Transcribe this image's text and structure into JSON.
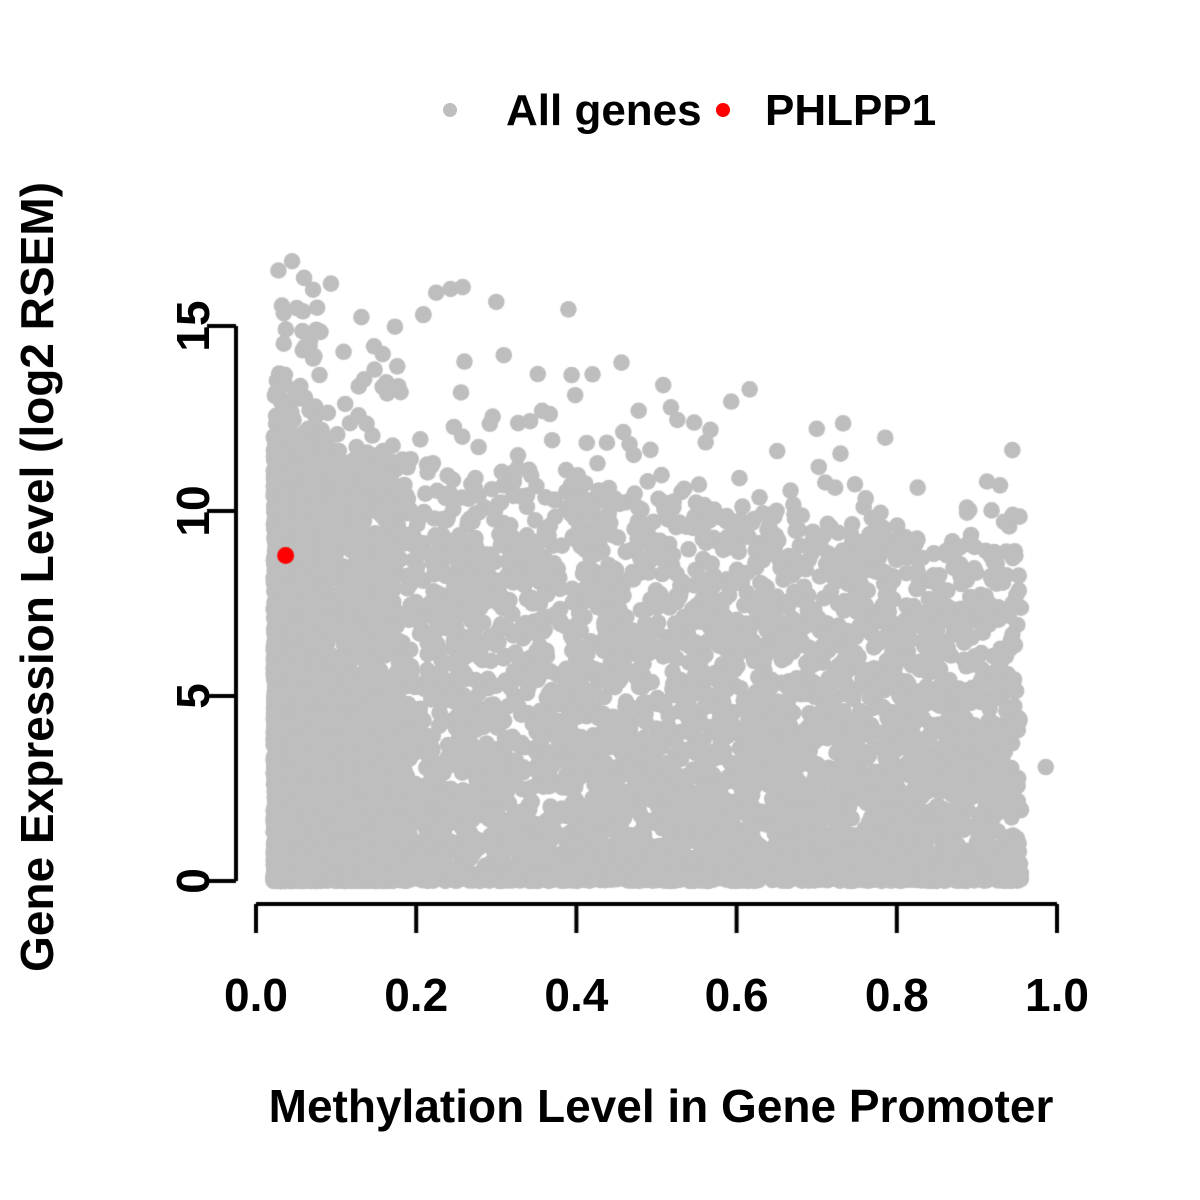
{
  "figure": {
    "background": "#FFFFFF",
    "axis_color": "#000000",
    "text_color": "#000000"
  },
  "legend": {
    "position": "top-center",
    "entries": [
      {
        "label": "All genes",
        "color": "#BEBEBE",
        "marker": "filled-circle"
      },
      {
        "label": "PHLPP1",
        "color": "#FF0000",
        "marker": "filled-circle"
      }
    ]
  },
  "axes": {
    "x": {
      "title": "Methylation Level in Gene Promoter",
      "ticks": [
        "0.0",
        "0.2",
        "0.4",
        "0.6",
        "0.8",
        "1.0"
      ],
      "tick_values": [
        0,
        0.2,
        0.4,
        0.6,
        0.8,
        1.0
      ],
      "range": [
        0,
        1
      ]
    },
    "y": {
      "title": "Gene Expression Level (log2 RSEM)",
      "ticks": [
        "0",
        "5",
        "10",
        "15"
      ],
      "tick_values": [
        0,
        5,
        10,
        15
      ],
      "range": [
        0,
        16.8
      ]
    }
  },
  "chart_data": {
    "type": "scatter",
    "title": "",
    "xlabel": "Methylation Level in Gene Promoter",
    "ylabel": "Gene Expression Level (log2 RSEM)",
    "xlim": [
      0,
      1
    ],
    "ylim": [
      0,
      16.8
    ],
    "xticks": [
      0,
      0.2,
      0.4,
      0.6,
      0.8,
      1.0
    ],
    "yticks": [
      0,
      5,
      10,
      15
    ],
    "grid": false,
    "legend_position": "top-center",
    "series": [
      {
        "name": "All genes",
        "color": "#BEBEBE",
        "marker": "filled-circle",
        "marker_radius_px": 8.3,
        "summary": "~9000 genes forming a dense cloud; x (promoter methylation) spans 0.02-0.955, y (log2 RSEM expression) spans 0-16.8; density is highest at low methylation and low expression; upper envelope of expression declines roughly as 16.8 - 4.5*x; heavy accumulation of points along y=0.",
        "generator": {
          "seed": 1234,
          "n": 9000,
          "x_min": 0.022,
          "x_max": 0.955,
          "left_column_span": 0.055,
          "envelope_intercept": 16.8,
          "envelope_slope": -4.5,
          "zero_band_fraction": 0.12
        },
        "feature_points": [
          [
            0.986,
            3.08
          ],
          [
            0.045,
            16.75
          ],
          [
            0.028,
            16.5
          ],
          [
            0.06,
            16.3
          ],
          [
            0.243,
            16.0
          ],
          [
            0.258,
            16.05
          ],
          [
            0.225,
            15.9
          ],
          [
            0.3,
            15.65
          ],
          [
            0.39,
            15.45
          ]
        ]
      },
      {
        "name": "PHLPP1",
        "color": "#FF0000",
        "marker": "filled-circle",
        "marker_radius_px": 8.5,
        "points": [
          [
            0.037,
            8.8
          ]
        ]
      }
    ]
  }
}
